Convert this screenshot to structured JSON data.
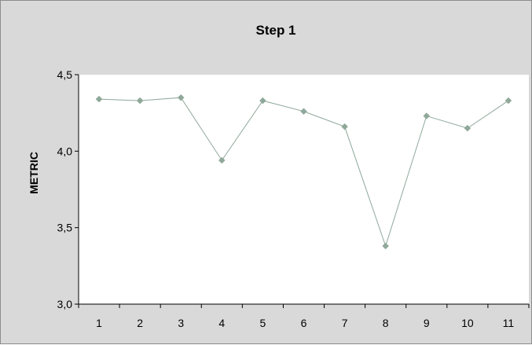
{
  "chart_data": {
    "type": "line",
    "title": "Step 1",
    "xlabel": "",
    "ylabel": "METRIC",
    "categories": [
      "1",
      "2",
      "3",
      "4",
      "5",
      "6",
      "7",
      "8",
      "9",
      "10",
      "11"
    ],
    "series": [
      {
        "values": [
          4.34,
          4.33,
          4.35,
          3.94,
          4.33,
          4.26,
          4.16,
          3.38,
          4.23,
          4.15,
          4.33
        ]
      }
    ],
    "ylim": [
      3.0,
      4.5
    ],
    "yticks": [
      "3,0",
      "3,5",
      "4,0",
      "4,5"
    ],
    "grid": false,
    "legend": "none",
    "colors": {
      "chart_background": "#d9d9d9",
      "plot_background": "#ffffff",
      "line": "#8fa89a",
      "marker": "#8fa89a"
    },
    "marker": "diamond"
  }
}
